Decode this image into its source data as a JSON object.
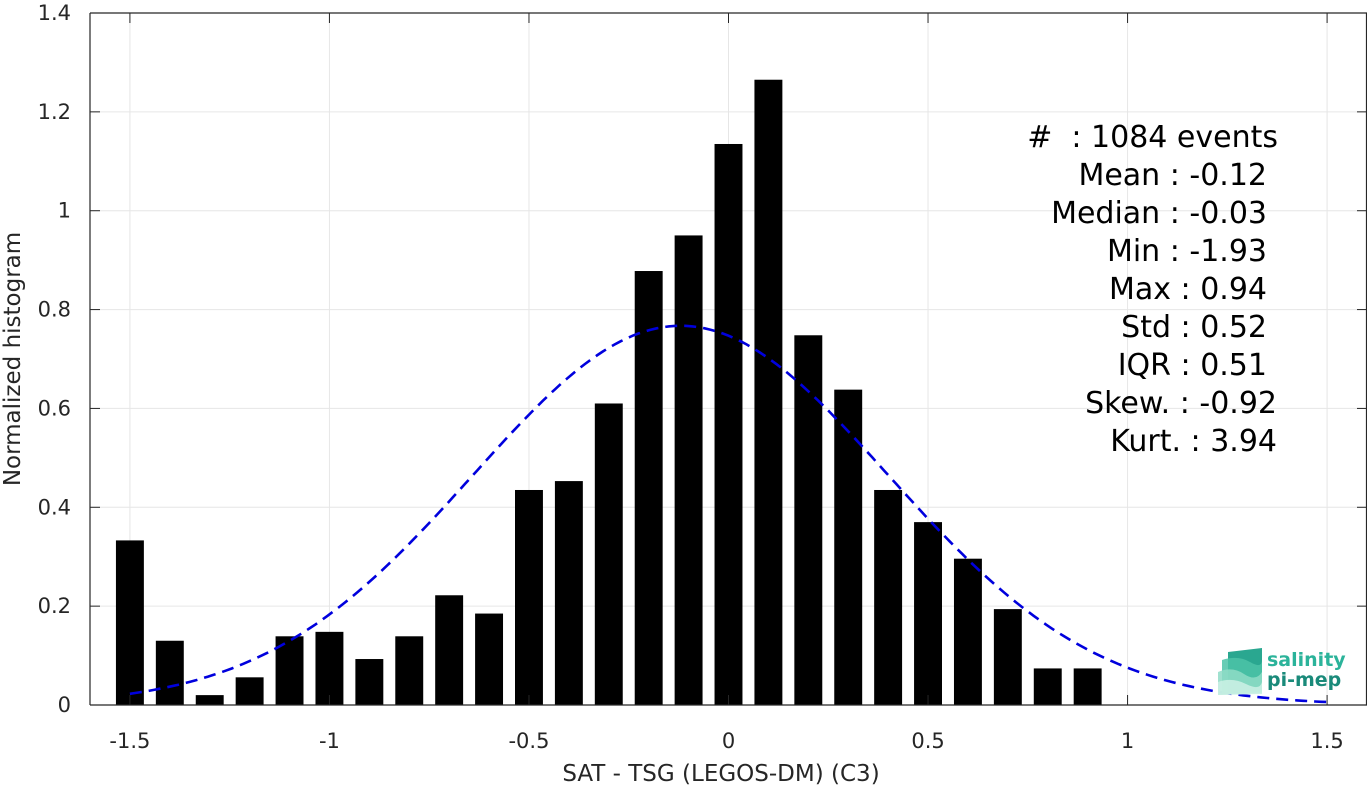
{
  "chart_data": {
    "type": "bar",
    "title": "",
    "xlabel": "SAT - TSG (LEGOS-DM) (C3)",
    "ylabel": "Normalized histogram",
    "xlim": [
      -1.6,
      1.6
    ],
    "ylim": [
      0,
      1.4
    ],
    "grid": true,
    "bar_width": 0.07,
    "x_ticks": [
      -1.5,
      -1,
      -0.5,
      0,
      0.5,
      1,
      1.5
    ],
    "x_tick_labels": [
      "-1.5",
      "-1",
      "-0.5",
      "0",
      "0.5",
      "1",
      "1.5"
    ],
    "y_ticks": [
      0,
      0.2,
      0.4,
      0.6,
      0.8,
      1,
      1.2,
      1.4
    ],
    "y_tick_labels": [
      "0",
      "0.2",
      "0.4",
      "0.6",
      "0.8",
      "1",
      "1.2",
      "1.4"
    ],
    "series": [
      {
        "x": [
          -1.5,
          -1.4,
          -1.3,
          -1.2,
          -1.1,
          -1.0,
          -0.9,
          -0.8,
          -0.7,
          -0.6,
          -0.5,
          -0.4,
          -0.3,
          -0.2,
          -0.1,
          0.0,
          0.1,
          0.2,
          0.3,
          0.4,
          0.5,
          0.6,
          0.7,
          0.8,
          0.9
        ],
        "values": [
          0.333,
          0.13,
          0.02,
          0.056,
          0.139,
          0.148,
          0.093,
          0.139,
          0.222,
          0.185,
          0.435,
          0.453,
          0.61,
          0.878,
          0.95,
          1.135,
          1.265,
          0.748,
          0.638,
          0.435,
          0.37,
          0.296,
          0.194,
          0.074,
          0.074
        ],
        "color": "#000000"
      },
      {
        "type": "line",
        "style": "dashed",
        "color": "#0000DD",
        "mean": -0.12,
        "std": 0.52,
        "x_range": [
          -1.5,
          1.5
        ]
      }
    ],
    "annotations": [
      "#  : 1084 events",
      "Mean : -0.12",
      "Median : -0.03",
      "Min : -1.93",
      "Max : 0.94",
      "Std : 0.52",
      "IQR : 0.51",
      "Skew. : -0.92",
      "Kurt. : 3.94"
    ]
  },
  "logo": {
    "line1": "salinity",
    "line2": "pi-mep",
    "line1_color": "#2bb39a",
    "line2_color": "#1a8a7a"
  },
  "colors": {
    "bars": "#000000",
    "fit_line": "#0000DD",
    "grid": "#e6e6e6",
    "axes": "#262626"
  }
}
